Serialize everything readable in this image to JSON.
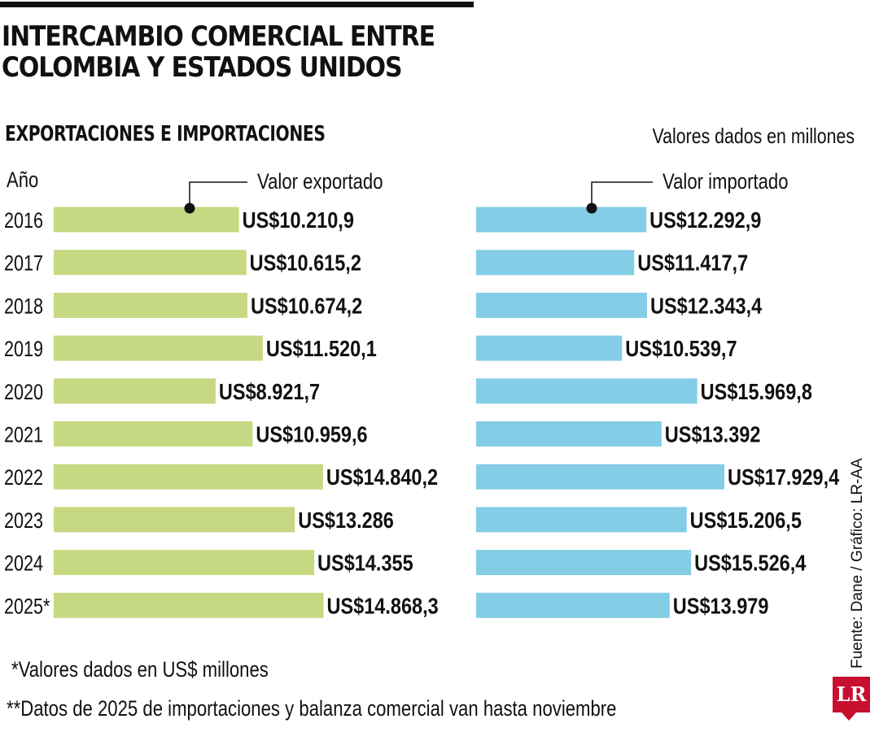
{
  "header": {
    "title_line1": "INTERCAMBIO COMERCIAL ENTRE",
    "title_line2": "COLOMBIA Y ESTADOS UNIDOS",
    "subtitle": "EXPORTACIONES E IMPORTACIONES",
    "units": "Valores dados en millones"
  },
  "chart_data": {
    "type": "bar",
    "orientation": "horizontal",
    "year_header": "Año",
    "categories": [
      "2016",
      "2017",
      "2018",
      "2019",
      "2020",
      "2021",
      "2022",
      "2023",
      "2024",
      "2025*"
    ],
    "series": [
      {
        "name": "Valor exportado",
        "color": "#c6d982",
        "values": [
          10210.9,
          10615.2,
          10674.2,
          11520.1,
          8921.7,
          10959.6,
          14840.2,
          13286,
          14355,
          14868.3
        ],
        "labels": [
          "US$10.210,9",
          "US$10.615,2",
          "US$10.674,2",
          "US$11.520,1",
          "US$8.921,7",
          "US$10.959,6",
          "US$14.840,2",
          "US$13.286",
          "US$14.355",
          "US$14.868,3"
        ]
      },
      {
        "name": "Valor importado",
        "color": "#83cde6",
        "values": [
          12292.9,
          11417.7,
          12343.4,
          10539.7,
          15969.8,
          13392,
          17929.4,
          15206.5,
          15526.4,
          13979
        ],
        "labels": [
          "US$12.292,9",
          "US$11.417,7",
          "US$12.343,4",
          "US$10.539,7",
          "US$15.969,8",
          "US$13.392",
          "US$17.929,4",
          "US$15.206,5",
          "US$15.526,4",
          "US$13.979"
        ]
      }
    ],
    "xlim": [
      0,
      17929.4
    ],
    "grid": false
  },
  "notes": {
    "note1": "*Valores dados en US$ millones",
    "note2": "**Datos de 2025 de importaciones y balanza comercial van hasta noviembre"
  },
  "source": "Fuente: Dane / Gráfico: LR-AA",
  "logo": "LR"
}
